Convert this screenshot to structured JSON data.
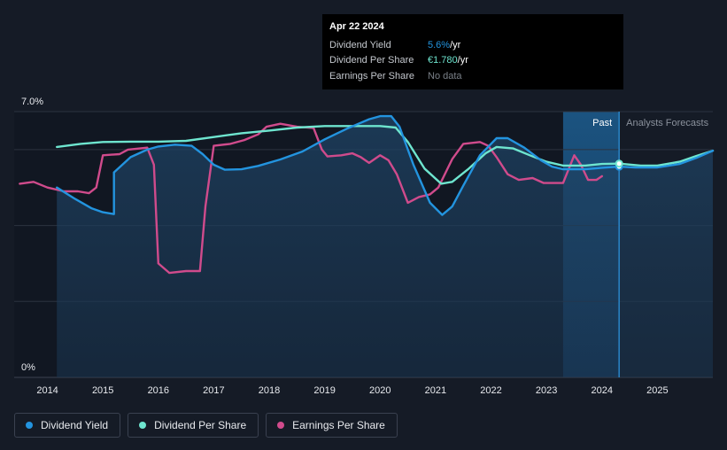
{
  "chart_data": {
    "type": "line",
    "y_unit": "percent",
    "ylim": [
      0,
      7
    ],
    "xlim": [
      2013.4,
      2026.0
    ],
    "y_tick_labels": [
      {
        "value": 7,
        "label": "7.0%"
      },
      {
        "value": 0,
        "label": "0%"
      }
    ],
    "x_tick_labels": [
      "2014",
      "2015",
      "2016",
      "2017",
      "2018",
      "2019",
      "2020",
      "2021",
      "2022",
      "2023",
      "2024",
      "2025"
    ],
    "x_ticks": [
      2014,
      2015,
      2016,
      2017,
      2018,
      2019,
      2020,
      2021,
      2022,
      2023,
      2024,
      2025
    ],
    "gridlines": [
      7,
      6,
      4,
      2
    ],
    "past_label": "Past",
    "forecast_label": "Analysts Forecasts",
    "highlight_start": 2023.3,
    "today": 2024.31,
    "series": [
      {
        "name": "Dividend Yield",
        "color": "#2394df",
        "area": true,
        "points": [
          [
            2014.17,
            5.0
          ],
          [
            2014.5,
            4.7
          ],
          [
            2014.8,
            4.45
          ],
          [
            2015.0,
            4.35
          ],
          [
            2015.2,
            4.3
          ],
          [
            2015.2,
            5.4
          ],
          [
            2015.5,
            5.8
          ],
          [
            2015.8,
            6.0
          ],
          [
            2016.0,
            6.08
          ],
          [
            2016.3,
            6.13
          ],
          [
            2016.6,
            6.1
          ],
          [
            2016.8,
            5.88
          ],
          [
            2017.0,
            5.6
          ],
          [
            2017.2,
            5.47
          ],
          [
            2017.5,
            5.48
          ],
          [
            2017.8,
            5.57
          ],
          [
            2018.2,
            5.74
          ],
          [
            2018.6,
            5.95
          ],
          [
            2019.0,
            6.27
          ],
          [
            2019.4,
            6.55
          ],
          [
            2019.8,
            6.8
          ],
          [
            2020.0,
            6.88
          ],
          [
            2020.2,
            6.88
          ],
          [
            2020.35,
            6.6
          ],
          [
            2020.6,
            5.6
          ],
          [
            2020.9,
            4.6
          ],
          [
            2021.12,
            4.28
          ],
          [
            2021.3,
            4.5
          ],
          [
            2021.5,
            5.05
          ],
          [
            2021.8,
            5.85
          ],
          [
            2022.1,
            6.3
          ],
          [
            2022.3,
            6.3
          ],
          [
            2022.6,
            6.05
          ],
          [
            2022.9,
            5.72
          ],
          [
            2023.1,
            5.55
          ],
          [
            2023.3,
            5.48
          ],
          [
            2023.7,
            5.48
          ],
          [
            2024.0,
            5.52
          ],
          [
            2024.31,
            5.55
          ],
          [
            2024.6,
            5.53
          ],
          [
            2025.0,
            5.53
          ],
          [
            2025.4,
            5.62
          ],
          [
            2025.7,
            5.78
          ],
          [
            2026.0,
            5.97
          ]
        ]
      },
      {
        "name": "Dividend Per Share",
        "color": "#6ee5cf",
        "area": false,
        "points": [
          [
            2014.17,
            6.07
          ],
          [
            2014.6,
            6.15
          ],
          [
            2015.0,
            6.2
          ],
          [
            2015.5,
            6.21
          ],
          [
            2016.0,
            6.21
          ],
          [
            2016.5,
            6.23
          ],
          [
            2017.0,
            6.33
          ],
          [
            2017.5,
            6.43
          ],
          [
            2018.0,
            6.5
          ],
          [
            2018.5,
            6.58
          ],
          [
            2019.0,
            6.62
          ],
          [
            2019.5,
            6.62
          ],
          [
            2020.0,
            6.62
          ],
          [
            2020.28,
            6.58
          ],
          [
            2020.5,
            6.2
          ],
          [
            2020.8,
            5.5
          ],
          [
            2021.1,
            5.1
          ],
          [
            2021.3,
            5.15
          ],
          [
            2021.6,
            5.5
          ],
          [
            2021.9,
            5.9
          ],
          [
            2022.1,
            6.07
          ],
          [
            2022.4,
            6.03
          ],
          [
            2022.7,
            5.85
          ],
          [
            2023.0,
            5.68
          ],
          [
            2023.3,
            5.58
          ],
          [
            2023.7,
            5.58
          ],
          [
            2024.0,
            5.62
          ],
          [
            2024.31,
            5.63
          ],
          [
            2024.7,
            5.58
          ],
          [
            2025.0,
            5.58
          ],
          [
            2025.4,
            5.68
          ],
          [
            2025.7,
            5.83
          ],
          [
            2026.0,
            5.97
          ]
        ]
      },
      {
        "name": "Earnings Per Share",
        "color": "#d04b8c",
        "area": false,
        "points": [
          [
            2013.5,
            5.1
          ],
          [
            2013.75,
            5.15
          ],
          [
            2014.0,
            5.0
          ],
          [
            2014.3,
            4.9
          ],
          [
            2014.55,
            4.9
          ],
          [
            2014.75,
            4.85
          ],
          [
            2014.88,
            5.0
          ],
          [
            2015.0,
            5.85
          ],
          [
            2015.3,
            5.88
          ],
          [
            2015.45,
            6.0
          ],
          [
            2015.8,
            6.05
          ],
          [
            2015.92,
            5.6
          ],
          [
            2016.0,
            3.0
          ],
          [
            2016.2,
            2.75
          ],
          [
            2016.5,
            2.8
          ],
          [
            2016.75,
            2.8
          ],
          [
            2016.85,
            4.5
          ],
          [
            2017.0,
            6.1
          ],
          [
            2017.3,
            6.15
          ],
          [
            2017.55,
            6.25
          ],
          [
            2017.8,
            6.4
          ],
          [
            2017.95,
            6.6
          ],
          [
            2018.2,
            6.68
          ],
          [
            2018.5,
            6.6
          ],
          [
            2018.8,
            6.57
          ],
          [
            2018.95,
            6.0
          ],
          [
            2019.05,
            5.82
          ],
          [
            2019.3,
            5.85
          ],
          [
            2019.5,
            5.9
          ],
          [
            2019.65,
            5.8
          ],
          [
            2019.8,
            5.65
          ],
          [
            2020.0,
            5.85
          ],
          [
            2020.15,
            5.72
          ],
          [
            2020.3,
            5.35
          ],
          [
            2020.5,
            4.6
          ],
          [
            2020.7,
            4.75
          ],
          [
            2020.9,
            4.82
          ],
          [
            2021.05,
            5.0
          ],
          [
            2021.3,
            5.75
          ],
          [
            2021.5,
            6.15
          ],
          [
            2021.8,
            6.2
          ],
          [
            2021.95,
            6.1
          ],
          [
            2022.1,
            5.8
          ],
          [
            2022.3,
            5.35
          ],
          [
            2022.5,
            5.2
          ],
          [
            2022.75,
            5.25
          ],
          [
            2022.95,
            5.12
          ],
          [
            2023.0,
            5.12
          ],
          [
            2023.3,
            5.12
          ],
          [
            2023.5,
            5.85
          ],
          [
            2023.62,
            5.6
          ],
          [
            2023.75,
            5.2
          ],
          [
            2023.9,
            5.2
          ],
          [
            2024.0,
            5.3
          ]
        ]
      }
    ]
  },
  "tooltip": {
    "date": "Apr 22 2024",
    "rows": [
      {
        "label": "Dividend Yield",
        "value": "5.6%",
        "unit": " /yr",
        "color": "#2394df"
      },
      {
        "label": "Dividend Per Share",
        "value": "€1.780",
        "unit": " /yr",
        "color": "#6ee5cf"
      },
      {
        "label": "Earnings Per Share",
        "value": "No data",
        "unit": "",
        "color": "#7a8088"
      }
    ]
  },
  "legend": [
    {
      "label": "Dividend Yield",
      "color": "#2394df"
    },
    {
      "label": "Dividend Per Share",
      "color": "#6ee5cf"
    },
    {
      "label": "Earnings Per Share",
      "color": "#d04b8c"
    }
  ]
}
